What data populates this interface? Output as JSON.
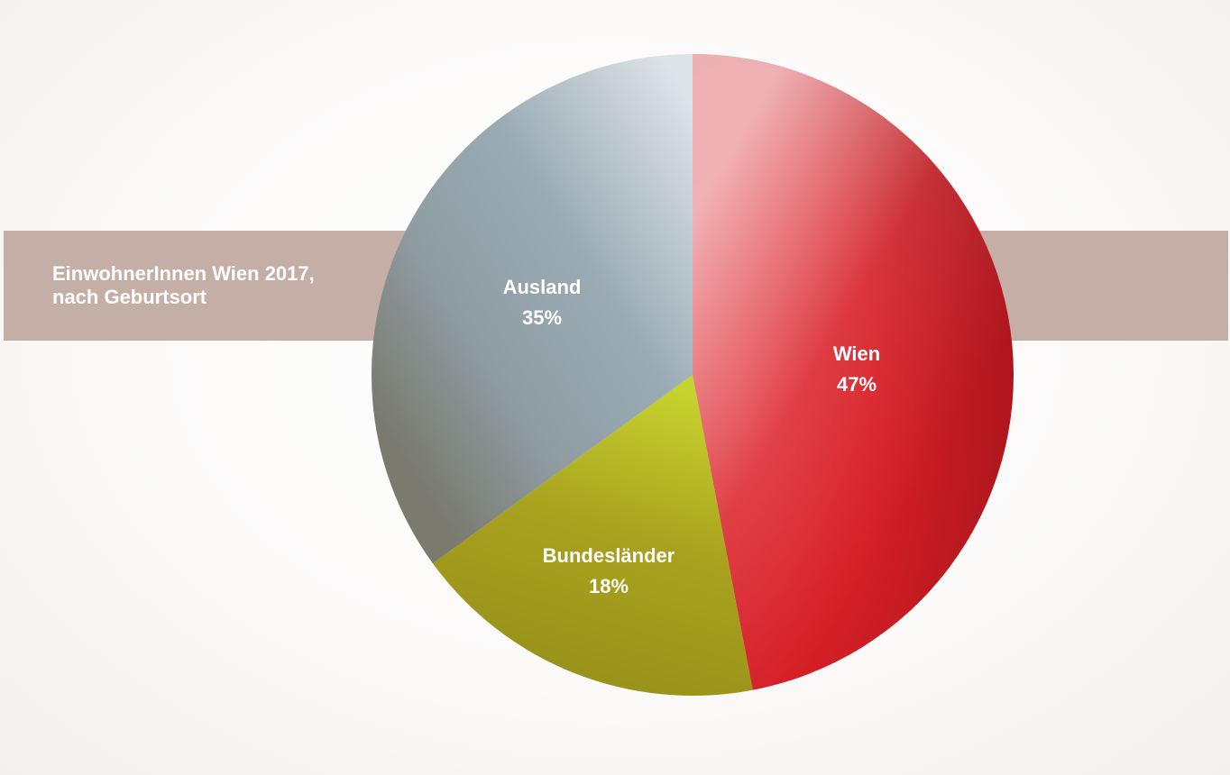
{
  "title": {
    "line1": "EinwohnerInnen Wien 2017,",
    "line2": "nach Geburtsort"
  },
  "chart_data": {
    "type": "pie",
    "slices": [
      {
        "label": "Wien",
        "value": 47,
        "value_label": "47%",
        "color": "#d71f27"
      },
      {
        "label": "Bundesländer",
        "value": 18,
        "value_label": "18%",
        "color": "#a29a1c"
      },
      {
        "label": "Ausland",
        "value": 35,
        "value_label": "35%",
        "color": "#97a8b2"
      }
    ]
  }
}
